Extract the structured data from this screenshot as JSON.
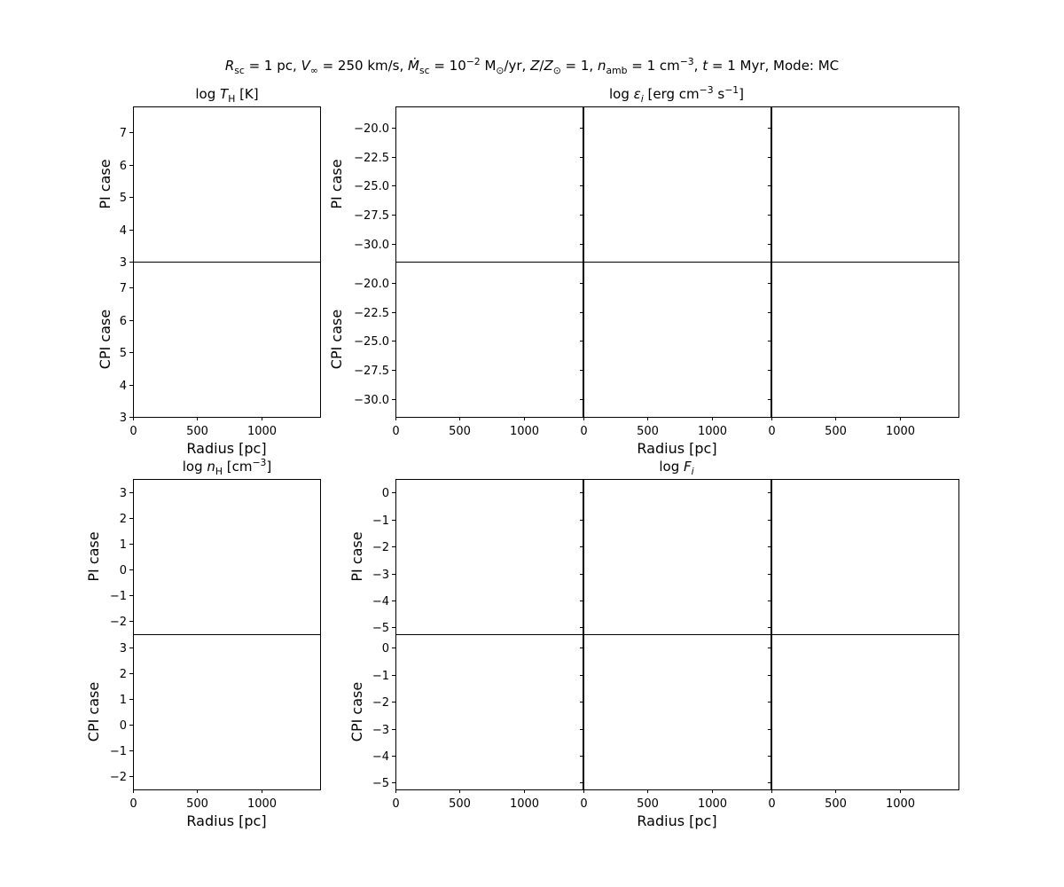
{
  "figure": {
    "suptitle": "R_sc = 1 pc, V_∞ = 250 km/s, Ṁ_sc = 10⁻² M⊙/yr, Z/Z⊙ = 1, n_amb = 1 cm⁻³, t = 1 Myr, Mode: MC"
  },
  "chart_data": [
    {
      "id": "temperature",
      "type": "line",
      "title": "log T_H [K]",
      "rows": [
        "PI case",
        "CPI case"
      ],
      "columns": 1,
      "xlabel": "Radius [pc]",
      "xlim": [
        0,
        1460
      ],
      "ylim": [
        3,
        7.8
      ],
      "xticks": [
        0,
        500,
        1000
      ],
      "yticks": [
        3,
        4,
        5,
        6,
        7
      ],
      "ytick_labels": [
        "3",
        "4",
        "5",
        "6",
        "7"
      ],
      "series": []
    },
    {
      "id": "emissivity",
      "type": "line",
      "title": "log ε_i [erg cm⁻³ s⁻¹]",
      "rows": [
        "PI case",
        "CPI case"
      ],
      "columns": 3,
      "xlabel": "Radius [pc]",
      "xlim": [
        0,
        1460
      ],
      "ylim": [
        -31.5,
        -18.2
      ],
      "xticks": [
        0,
        500,
        1000
      ],
      "yticks": [
        -30,
        -27.5,
        -25,
        -22.5,
        -20
      ],
      "ytick_labels": [
        "−30.0",
        "−27.5",
        "−25.0",
        "−22.5",
        "−20.0"
      ],
      "series": []
    },
    {
      "id": "density",
      "type": "line",
      "title": "log n_H [cm⁻³]",
      "rows": [
        "PI case",
        "CPI case"
      ],
      "columns": 1,
      "xlabel": "Radius [pc]",
      "xlim": [
        0,
        1460
      ],
      "ylim": [
        -2.5,
        3.5
      ],
      "xticks": [
        0,
        500,
        1000
      ],
      "yticks": [
        -2,
        -1,
        0,
        1,
        2,
        3
      ],
      "ytick_labels": [
        "−2",
        "−1",
        "0",
        "1",
        "2",
        "3"
      ],
      "series": []
    },
    {
      "id": "fraction",
      "type": "line",
      "title": "log F_i",
      "rows": [
        "PI case",
        "CPI case"
      ],
      "columns": 3,
      "xlabel": "Radius [pc]",
      "xlim": [
        0,
        1460
      ],
      "ylim": [
        -5.25,
        0.5
      ],
      "xticks": [
        0,
        500,
        1000
      ],
      "yticks": [
        -5,
        -4,
        -3,
        -2,
        -1,
        0
      ],
      "ytick_labels": [
        "−5",
        "−4",
        "−3",
        "−2",
        "−1",
        "0"
      ],
      "series": []
    }
  ]
}
